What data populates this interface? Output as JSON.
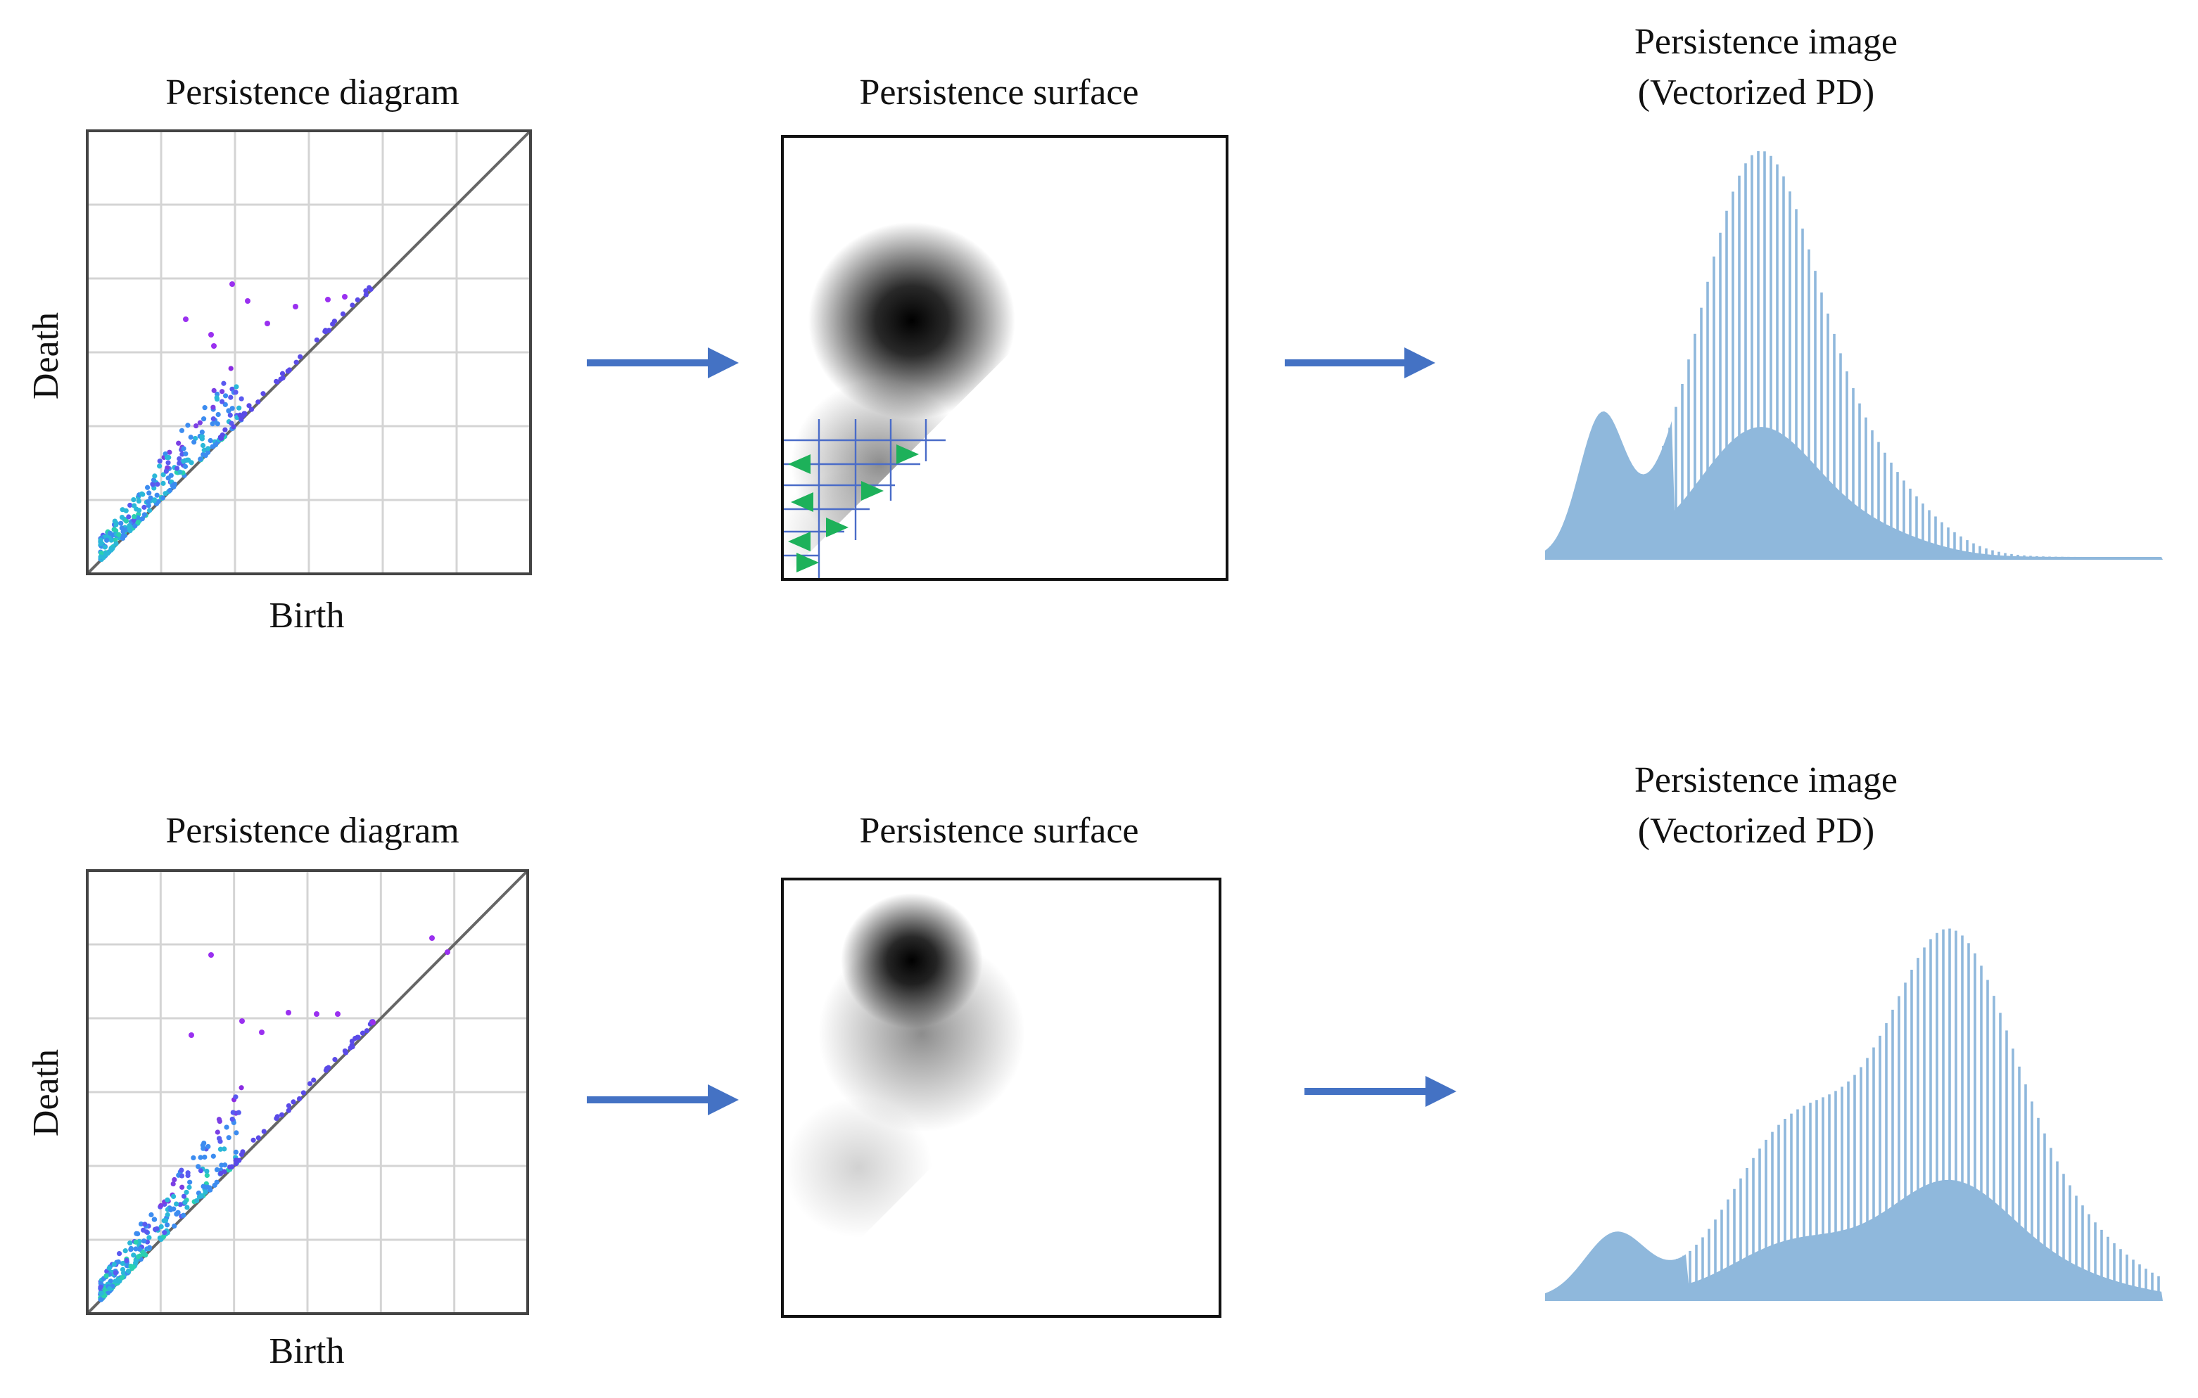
{
  "rows": [
    {
      "diagram": {
        "title": "Persistence diagram",
        "x_label": "Birth",
        "y_label": "Death"
      },
      "surface": {
        "title": "Persistence surface"
      },
      "image": {
        "title": [
          "Persistence image",
          "(Vectorized PD)"
        ]
      }
    },
    {
      "diagram": {
        "title": "Persistence diagram",
        "x_label": "Birth",
        "y_label": "Death"
      },
      "surface": {
        "title": "Persistence surface"
      },
      "image": {
        "title": [
          "Persistence image",
          "(Vectorized PD)"
        ]
      }
    }
  ]
}
